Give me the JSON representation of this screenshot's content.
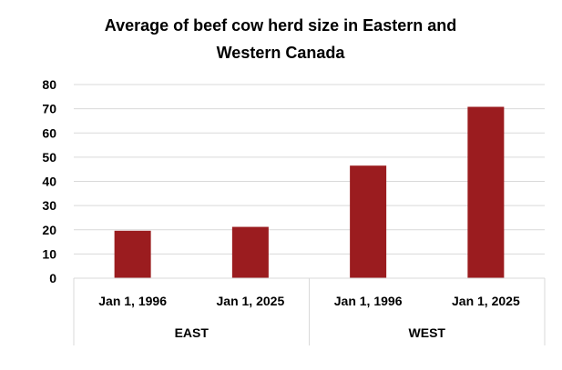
{
  "chart_data": {
    "type": "bar",
    "title_lines": [
      "Average of beef cow herd size in Eastern and",
      "Western Canada"
    ],
    "xlabel": "",
    "ylabel": "",
    "ylim": [
      0,
      80
    ],
    "yticks": [
      0,
      10,
      20,
      30,
      40,
      50,
      60,
      70,
      80
    ],
    "groups": [
      {
        "label": "EAST",
        "categories": [
          "Jan 1, 1996",
          "Jan 1, 2025"
        ],
        "values": [
          19.6,
          21.2
        ]
      },
      {
        "label": "WEST",
        "categories": [
          "Jan 1, 1996",
          "Jan 1, 2025"
        ],
        "values": [
          46.5,
          70.8
        ]
      }
    ],
    "bar_color": "#9b1c1f",
    "grid": true,
    "legend": "none"
  }
}
